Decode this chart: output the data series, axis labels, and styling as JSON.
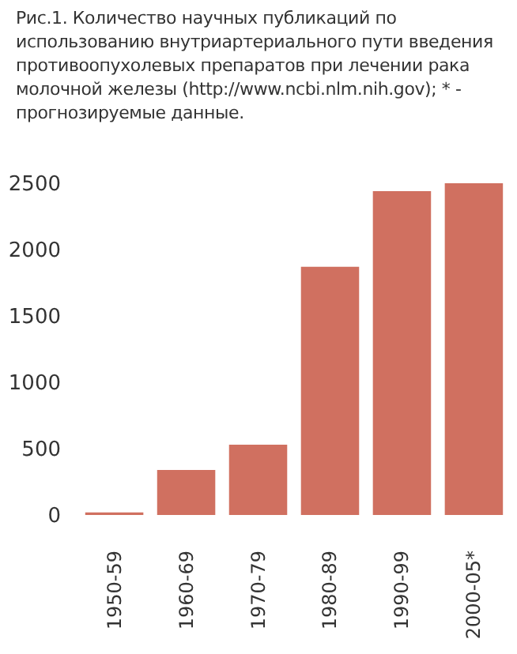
{
  "chart_data": {
    "type": "bar",
    "title": "Рис.1. Количество научных публикаций по использованию внутриартериального пути введения противоопухолевых препаратов при лечении рака молочной железы (http://www.ncbi.nlm.nih.gov); * - прогнозируемые данные.",
    "categories": [
      "1950-59",
      "1960-69",
      "1970-79",
      "1980-89",
      "1990-99",
      "2000-05*"
    ],
    "values": [
      20,
      340,
      530,
      1870,
      2440,
      2500
    ],
    "color": "#d07060",
    "ylim": [
      0,
      2500
    ],
    "yticks": [
      0,
      500,
      1000,
      1500,
      2000,
      2500
    ],
    "grid": false
  }
}
